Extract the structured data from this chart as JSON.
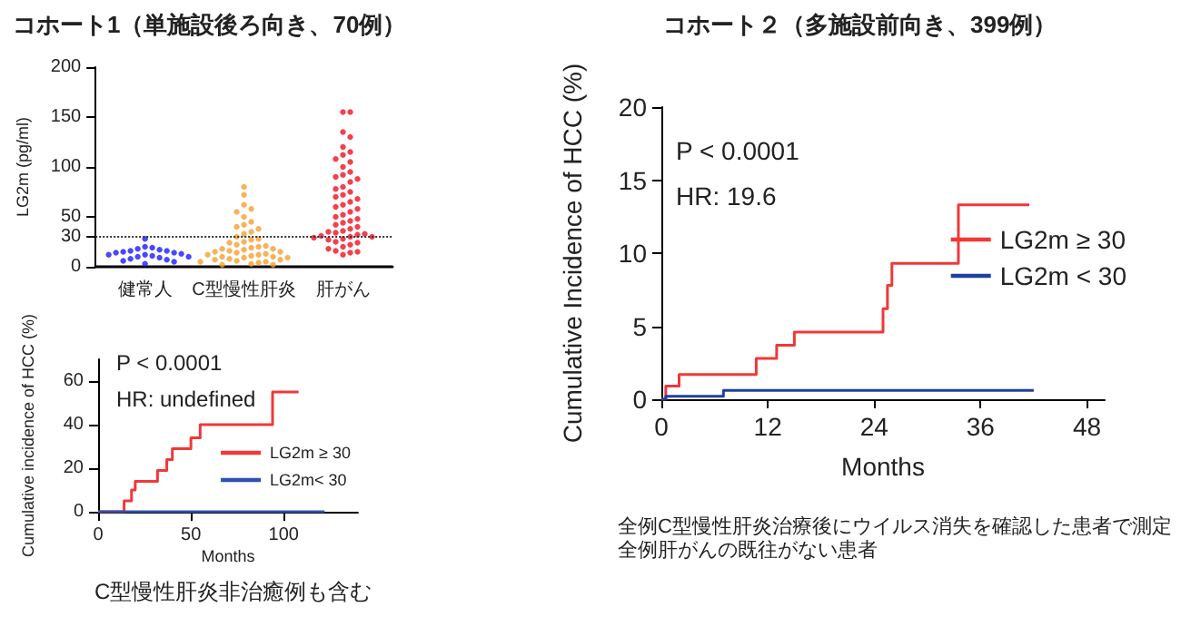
{
  "chart_data": [
    {
      "type": "scatter",
      "title": "コホート1（単施設後ろ向き、70例）",
      "ylabel": "LG2m (pg/ml)",
      "categories": [
        "健常人",
        "C型慢性肝炎",
        "肝がん"
      ],
      "ylim": [
        0,
        200
      ],
      "yticks": [
        0,
        30,
        50,
        100,
        150,
        200
      ],
      "grid": false,
      "legend": false,
      "marker": "circle",
      "ref_lines": [
        {
          "axis": "y",
          "value": 30,
          "line_style": "dotted",
          "color": "#333333"
        }
      ],
      "series": [
        {
          "color": "#1a1aff",
          "x": [
            "健常人",
            "健常人",
            "健常人",
            "健常人",
            "健常人",
            "健常人",
            "健常人",
            "健常人",
            "健常人",
            "健常人",
            "健常人",
            "健常人",
            "健常人",
            "健常人",
            "健常人",
            "健常人",
            "健常人",
            "健常人",
            "健常人",
            "健常人",
            "健常人",
            "健常人"
          ],
          "values": [
            28,
            20,
            19,
            18,
            17,
            16,
            16,
            15,
            14,
            14,
            13,
            12,
            12,
            11,
            10,
            10,
            9,
            8,
            7,
            6,
            5,
            3
          ]
        },
        {
          "color": "#f5a030",
          "x": [
            "C型慢性肝炎",
            "C型慢性肝炎",
            "C型慢性肝炎",
            "C型慢性肝炎",
            "C型慢性肝炎",
            "C型慢性肝炎",
            "C型慢性肝炎",
            "C型慢性肝炎",
            "C型慢性肝炎",
            "C型慢性肝炎",
            "C型慢性肝炎",
            "C型慢性肝炎",
            "C型慢性肝炎",
            "C型慢性肝炎",
            "C型慢性肝炎",
            "C型慢性肝炎",
            "C型慢性肝炎",
            "C型慢性肝炎",
            "C型慢性肝炎",
            "C型慢性肝炎",
            "C型慢性肝炎",
            "C型慢性肝炎",
            "C型慢性肝炎",
            "C型慢性肝炎",
            "C型慢性肝炎",
            "C型慢性肝炎",
            "C型慢性肝炎",
            "C型慢性肝炎",
            "C型慢性肝炎",
            "C型慢性肝炎",
            "C型慢性肝炎",
            "C型慢性肝炎",
            "C型慢性肝炎",
            "C型慢性肝炎",
            "C型慢性肝炎",
            "C型慢性肝炎",
            "C型慢性肝炎",
            "C型慢性肝炎",
            "C型慢性肝炎",
            "C型慢性肝炎",
            "C型慢性肝炎",
            "C型慢性肝炎",
            "C型慢性肝炎",
            "C型慢性肝炎",
            "C型慢性肝炎",
            "C型慢性肝炎"
          ],
          "values": [
            80,
            72,
            62,
            58,
            55,
            50,
            45,
            42,
            40,
            38,
            35,
            33,
            30,
            28,
            27,
            25,
            24,
            22,
            21,
            20,
            19,
            18,
            18,
            17,
            16,
            15,
            15,
            14,
            13,
            12,
            12,
            11,
            10,
            10,
            9,
            9,
            8,
            7,
            7,
            6,
            5,
            5,
            4,
            3,
            2,
            2
          ]
        },
        {
          "color": "#f01020",
          "x": [
            "肝がん",
            "肝がん",
            "肝がん",
            "肝がん",
            "肝がん",
            "肝がん",
            "肝がん",
            "肝がん",
            "肝がん",
            "肝がん",
            "肝がん",
            "肝がん",
            "肝がん",
            "肝がん",
            "肝がん",
            "肝がん",
            "肝がん",
            "肝がん",
            "肝がん",
            "肝がん",
            "肝がん",
            "肝がん",
            "肝がん",
            "肝がん",
            "肝がん",
            "肝がん",
            "肝がん",
            "肝がん",
            "肝がん",
            "肝がん",
            "肝がん",
            "肝がん",
            "肝がん",
            "肝がん",
            "肝がん",
            "肝がん",
            "肝がん",
            "肝がん",
            "肝がん",
            "肝がん",
            "肝がん",
            "肝がん",
            "肝がん",
            "肝がん",
            "肝がん",
            "肝がん",
            "肝がん",
            "肝がん",
            "肝がん",
            "肝がん",
            "肝がん",
            "肝がん",
            "肝がん",
            "肝がん"
          ],
          "values": [
            155,
            155,
            135,
            130,
            120,
            115,
            112,
            108,
            105,
            100,
            95,
            92,
            90,
            88,
            85,
            80,
            78,
            75,
            72,
            70,
            68,
            65,
            62,
            60,
            58,
            55,
            52,
            50,
            48,
            46,
            44,
            42,
            40,
            38,
            36,
            35,
            34,
            33,
            32,
            31,
            30,
            30,
            29,
            28,
            27,
            25,
            24,
            22,
            20,
            18,
            16,
            15,
            14,
            12
          ]
        }
      ]
    },
    {
      "type": "step",
      "xlabel": "Months",
      "ylabel": "Cumulative incidence of HCC (%)",
      "xlim": [
        0,
        140
      ],
      "xticks": [
        0,
        50,
        100
      ],
      "ylim": [
        0,
        70
      ],
      "yticks": [
        0,
        20,
        40,
        60
      ],
      "grid": false,
      "legend": "right",
      "marker": "none",
      "line_style": "solid",
      "annotations": [
        "P < 0.0001",
        "HR: undefined",
        "C型慢性肝炎非治癒例も含む"
      ],
      "series": [
        {
          "name": "LG2m ≥ 30",
          "color": "#f03838",
          "x": [
            0,
            14,
            18,
            20,
            32,
            37,
            40,
            50,
            55,
            94,
            108
          ],
          "values": [
            0,
            5,
            10,
            14,
            19,
            24,
            29,
            34,
            40,
            55,
            55
          ]
        },
        {
          "name": "LG2m< 30",
          "color": "#3050b0",
          "x": [
            0,
            122
          ],
          "values": [
            0,
            0
          ]
        }
      ]
    },
    {
      "type": "step",
      "title": "コホート２（多施設前向き、399例）",
      "xlabel": "Months",
      "ylabel": "Cumulative Incidence of HCC (%)",
      "xlim": [
        0,
        50
      ],
      "xticks": [
        0,
        12,
        24,
        36,
        48
      ],
      "ylim": [
        0,
        20
      ],
      "yticks": [
        0,
        5,
        10,
        15,
        20
      ],
      "grid": false,
      "legend": "right",
      "marker": "none",
      "line_style": "solid",
      "annotations": [
        "P < 0.0001",
        "HR: 19.6",
        "全例C型慢性肝炎治療後にウイルス消失を確認した患者で測定",
        "全例肝がんの既往がない患者"
      ],
      "series": [
        {
          "name": "LG2m ≥ 30",
          "color": "#f03838",
          "x": [
            0,
            0.5,
            2,
            10.7,
            13,
            15,
            25,
            25.5,
            26,
            33.5,
            41.5
          ],
          "values": [
            0,
            0.9,
            1.7,
            2.8,
            3.7,
            4.6,
            6.2,
            7.8,
            9.3,
            13.3,
            13.3
          ]
        },
        {
          "name": "LG2m < 30",
          "color": "#2040a0",
          "x": [
            0,
            0.5,
            7,
            42
          ],
          "values": [
            0,
            0.2,
            0.6,
            0.6
          ]
        }
      ]
    }
  ]
}
